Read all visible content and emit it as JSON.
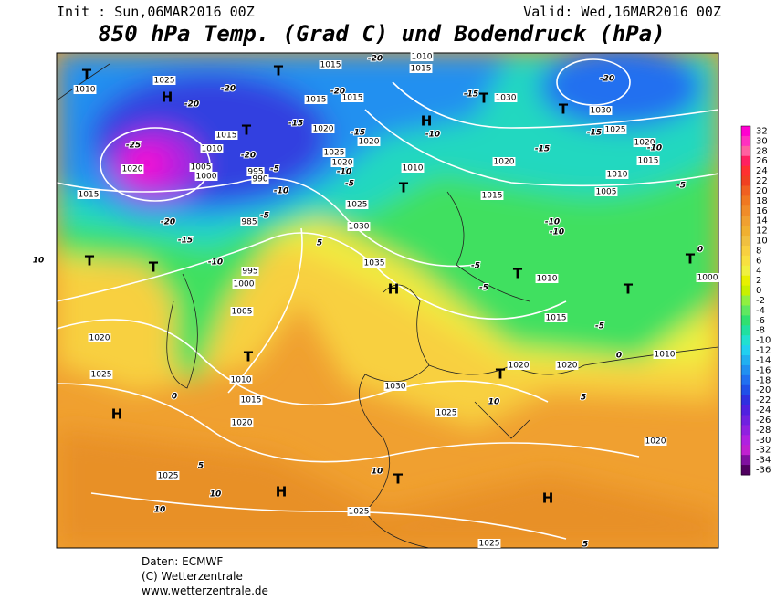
{
  "header": {
    "init": "Init : Sun,06MAR2016 00Z",
    "valid": "Valid: Wed,16MAR2016 00Z",
    "title": "850 hPa Temp. (Grad C) und Bodendruck (hPa)"
  },
  "colorbar": {
    "ticks": [
      32,
      30,
      28,
      26,
      24,
      22,
      20,
      18,
      16,
      14,
      12,
      10,
      8,
      6,
      4,
      2,
      0,
      -2,
      -4,
      -6,
      -8,
      -10,
      -12,
      -14,
      -16,
      -18,
      -20,
      -22,
      -24,
      -26,
      -28,
      -30,
      -32,
      -34,
      -36
    ],
    "colors": [
      "#ff00d0",
      "#ff30c0",
      "#ff60a0",
      "#ff2060",
      "#ff3030",
      "#f04020",
      "#f06020",
      "#f07820",
      "#f08c28",
      "#f0a030",
      "#f0b030",
      "#f0c040",
      "#f8d040",
      "#f8e040",
      "#f0f040",
      "#e8f000",
      "#c8f000",
      "#90f040",
      "#60e860",
      "#30e070",
      "#20e0a0",
      "#20e0d0",
      "#20d0f0",
      "#20b0f0",
      "#2090f0",
      "#2070f0",
      "#2050e8",
      "#3030e0",
      "#5020e0",
      "#7020e0",
      "#9020e0",
      "#b020e0",
      "#c020d0",
      "#8010a0",
      "#500060"
    ]
  },
  "map": {
    "pressure_centers": [
      "T",
      "H",
      "T",
      "T",
      "T",
      "H",
      "T",
      "T",
      "T",
      "T",
      "T",
      "H",
      "H",
      "T",
      "H",
      "T",
      "T",
      "T",
      "T",
      "H"
    ],
    "isobar_labels": [
      1025,
      1010,
      1015,
      1010,
      1020,
      1005,
      1000,
      995,
      990,
      1015,
      985,
      995,
      1000,
      1005,
      1020,
      1025,
      1010,
      1015,
      1020,
      1025,
      1025,
      1025,
      1015,
      1015,
      1015,
      1015,
      1020,
      1020,
      1025,
      1020,
      1025,
      1030,
      1035,
      1010,
      1015,
      1020,
      1030,
      1030,
      1025,
      1020,
      1015,
      1010,
      1005,
      1010,
      1015,
      1020,
      1020,
      1010,
      1000,
      1030,
      1025,
      1020,
      1010
    ],
    "isotherm_labels": [
      -20,
      -20,
      -25,
      -20,
      -15,
      -10,
      -5,
      -20,
      -15,
      -10,
      -5,
      -10,
      -5,
      -15,
      -20,
      -20,
      -15,
      -10,
      -15,
      -15,
      -20,
      -10,
      -10,
      -10,
      -5,
      -5,
      -5,
      -5,
      0,
      0,
      5,
      0,
      5,
      10,
      10,
      10,
      10,
      10,
      5,
      5
    ]
  },
  "footer": [
    "Daten: ECMWF",
    "(C) Wetterzentrale",
    "www.wetterzentrale.de"
  ]
}
